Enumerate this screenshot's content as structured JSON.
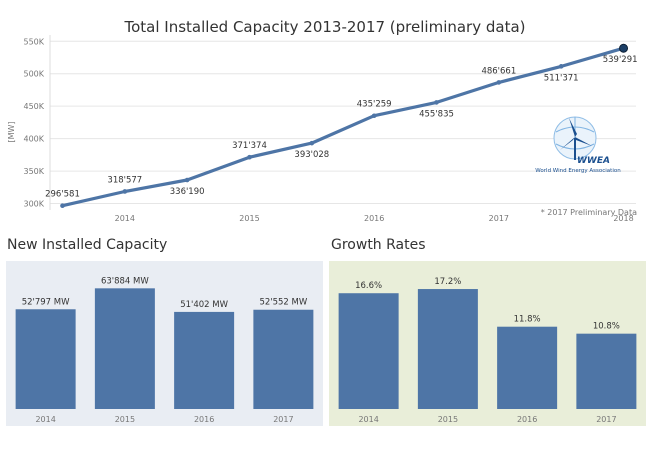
{
  "line_title": "Total Installed Capacity 2013-2017 (preliminary data)",
  "bar1_title": "New Installed Capacity",
  "bar2_title": "Growth Rates",
  "footnote": "* 2017 Preliminary Data",
  "logo": {
    "name": "WWEA",
    "subtitle": "World Wind Energy Association"
  },
  "colors": {
    "series": "#4e75a6",
    "bar": "#4e75a6",
    "panel1_bg": "#e9edf3",
    "panel2_bg": "#e9eed9",
    "grid": "#e6e6e6"
  },
  "chart_data": [
    {
      "type": "line",
      "title": "Total Installed Capacity 2013-2017 (preliminary data)",
      "ylabel": "[MW]",
      "xlabel": "",
      "ylim": [
        290000,
        552000
      ],
      "xlim": [
        2013.4,
        2018.1
      ],
      "yticks": [
        300000,
        350000,
        400000,
        450000,
        500000,
        550000
      ],
      "ytick_labels": [
        "300K",
        "350K",
        "400K",
        "450K",
        "500K",
        "550K"
      ],
      "xticks": [
        2014,
        2015,
        2016,
        2017,
        2018
      ],
      "xtick_labels": [
        "2014",
        "2015",
        "2016",
        "2017",
        "2018"
      ],
      "grid": true,
      "series": [
        {
          "name": "Total Installed Capacity",
          "x": [
            2013.5,
            2014.0,
            2014.5,
            2015.0,
            2015.5,
            2016.0,
            2016.5,
            2017.0,
            2017.5,
            2018.0
          ],
          "values": [
            296581,
            318577,
            336190,
            371374,
            393028,
            435259,
            455835,
            486661,
            511371,
            539291
          ],
          "labels": [
            "296'581",
            "318'577",
            "336'190",
            "371'374",
            "393'028",
            "435'259",
            "455'835",
            "486'661",
            "511'371",
            "539'291"
          ],
          "label_pos": [
            "above",
            "above",
            "below",
            "above",
            "below",
            "above",
            "below",
            "above",
            "below",
            "below"
          ]
        }
      ]
    },
    {
      "type": "bar",
      "title": "New Installed Capacity",
      "categories": [
        "2014",
        "2015",
        "2016",
        "2017"
      ],
      "values": [
        52797,
        63884,
        51402,
        52552
      ],
      "labels": [
        "52'797 MW",
        "63'884 MW",
        "51'402 MW",
        "52'552 MW"
      ],
      "ylim": [
        0,
        72000
      ]
    },
    {
      "type": "bar",
      "title": "Growth Rates",
      "categories": [
        "2014",
        "2015",
        "2016",
        "2017"
      ],
      "values": [
        16.6,
        17.2,
        11.8,
        10.8
      ],
      "labels": [
        "16.6%",
        "17.2%",
        "11.8%",
        "10.8%"
      ],
      "ylim": [
        0,
        19.5
      ]
    }
  ]
}
